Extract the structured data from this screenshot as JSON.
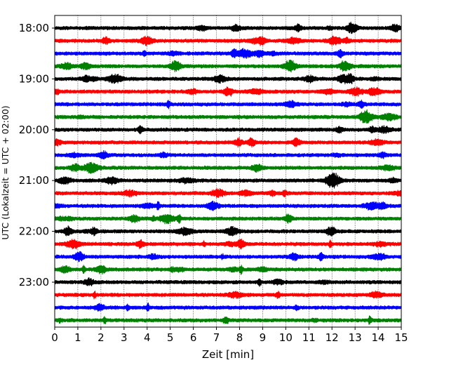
{
  "chart_data": {
    "type": "line",
    "title": "",
    "xlabel": "Zeit  [min]",
    "ylabel": "UTC (Lokalzeit = UTC + 02:00)",
    "xlim": [
      0,
      15
    ],
    "x_ticks": [
      0,
      1,
      2,
      3,
      4,
      5,
      6,
      7,
      8,
      9,
      10,
      11,
      12,
      13,
      14,
      15
    ],
    "y_tick_labels": [
      "18:00",
      "19:00",
      "20:00",
      "21:00",
      "22:00",
      "23:00"
    ],
    "grid": "vertical dotted lines at each minute",
    "trace_colors": [
      "#000000",
      "#ff0000",
      "#0000ff",
      "#008000"
    ],
    "trace_interval_minutes": 15,
    "series": [
      {
        "start": "18:00",
        "color": "#000000"
      },
      {
        "start": "18:15",
        "color": "#ff0000"
      },
      {
        "start": "18:30",
        "color": "#0000ff"
      },
      {
        "start": "18:45",
        "color": "#008000"
      },
      {
        "start": "19:00",
        "color": "#000000"
      },
      {
        "start": "19:15",
        "color": "#ff0000"
      },
      {
        "start": "19:30",
        "color": "#0000ff"
      },
      {
        "start": "19:45",
        "color": "#008000"
      },
      {
        "start": "20:00",
        "color": "#000000"
      },
      {
        "start": "20:15",
        "color": "#ff0000"
      },
      {
        "start": "20:30",
        "color": "#0000ff"
      },
      {
        "start": "20:45",
        "color": "#008000"
      },
      {
        "start": "21:00",
        "color": "#000000"
      },
      {
        "start": "21:15",
        "color": "#ff0000"
      },
      {
        "start": "21:30",
        "color": "#0000ff"
      },
      {
        "start": "21:45",
        "color": "#008000"
      },
      {
        "start": "22:00",
        "color": "#000000"
      },
      {
        "start": "22:15",
        "color": "#ff0000"
      },
      {
        "start": "22:30",
        "color": "#0000ff"
      },
      {
        "start": "22:45",
        "color": "#008000"
      },
      {
        "start": "23:00",
        "color": "#000000"
      },
      {
        "start": "23:15",
        "color": "#ff0000"
      },
      {
        "start": "23:30",
        "color": "#0000ff"
      },
      {
        "start": "23:45",
        "color": "#008000"
      }
    ]
  }
}
